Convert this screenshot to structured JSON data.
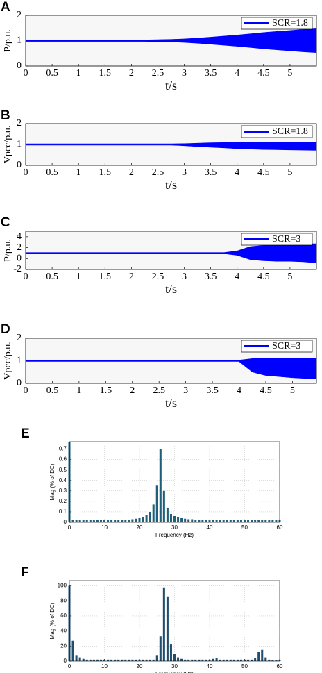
{
  "chart_data": [
    {
      "type": "area",
      "panel": "A",
      "ylabel": "P/p.u.",
      "xlabel": "t/s",
      "legend": "upper right",
      "x": [
        0,
        0.25,
        0.5,
        0.75,
        1,
        1.25,
        1.5,
        1.75,
        2,
        2.25,
        2.5,
        2.75,
        3,
        3.25,
        3.5,
        3.75,
        4,
        4.25,
        4.5,
        4.75,
        5,
        5.25,
        5.5
      ],
      "series": [
        {
          "name": "SCR=1.8",
          "color": "#0000ff",
          "values": [
            1.03,
            1.03,
            1.03,
            1.03,
            1.03,
            1.03,
            1.03,
            1.03,
            1.03,
            1.03,
            1.04,
            1.05,
            1.07,
            1.1,
            1.14,
            1.18,
            1.22,
            1.27,
            1.32,
            1.36,
            1.4,
            1.44,
            1.47
          ],
          "lower": [
            0.97,
            0.97,
            0.97,
            0.97,
            0.97,
            0.97,
            0.97,
            0.97,
            0.97,
            0.97,
            0.96,
            0.95,
            0.93,
            0.9,
            0.86,
            0.82,
            0.78,
            0.73,
            0.68,
            0.64,
            0.6,
            0.56,
            0.53
          ]
        }
      ],
      "xlim": [
        0,
        5.5
      ],
      "ylim": [
        0,
        2
      ],
      "xticks": [
        0,
        0.5,
        1,
        1.5,
        2,
        2.5,
        3,
        3.5,
        4,
        4.5,
        5
      ],
      "yticks": [
        0,
        1,
        2
      ],
      "grid": false
    },
    {
      "type": "area",
      "panel": "B",
      "ylabel": "Vpcc/p.u.",
      "xlabel": "t/s",
      "legend": "upper right",
      "x": [
        0,
        0.25,
        0.5,
        0.75,
        1,
        1.25,
        1.5,
        1.75,
        2,
        2.25,
        2.5,
        2.75,
        3,
        3.25,
        3.5,
        3.75,
        4,
        4.25,
        4.5,
        4.75,
        5,
        5.25,
        5.5
      ],
      "series": [
        {
          "name": "SCR=1.8",
          "color": "#0000ff",
          "values": [
            1.03,
            1.03,
            1.03,
            1.03,
            1.03,
            1.03,
            1.03,
            1.03,
            1.03,
            1.03,
            1.03,
            1.03,
            1.04,
            1.06,
            1.08,
            1.09,
            1.1,
            1.11,
            1.11,
            1.12,
            1.12,
            1.12,
            1.12
          ],
          "lower": [
            0.97,
            0.97,
            0.97,
            0.97,
            0.97,
            0.97,
            0.97,
            0.97,
            0.97,
            0.97,
            0.97,
            0.97,
            0.94,
            0.9,
            0.87,
            0.84,
            0.8,
            0.78,
            0.76,
            0.75,
            0.74,
            0.73,
            0.72
          ]
        }
      ],
      "xlim": [
        0,
        5.5
      ],
      "ylim": [
        0,
        2
      ],
      "xticks": [
        0,
        0.5,
        1,
        1.5,
        2,
        2.5,
        3,
        3.5,
        4,
        4.5,
        5
      ],
      "yticks": [
        0,
        1,
        2
      ],
      "grid": false
    },
    {
      "type": "area",
      "panel": "C",
      "ylabel": "P/p.u.",
      "xlabel": "t/s",
      "legend": "upper right",
      "x": [
        0,
        0.25,
        0.5,
        0.75,
        1,
        1.25,
        1.5,
        1.75,
        2,
        2.25,
        2.5,
        2.75,
        3,
        3.25,
        3.5,
        3.75,
        4,
        4.25,
        4.5,
        4.75,
        5,
        5.25,
        5.5
      ],
      "series": [
        {
          "name": "SCR=3",
          "color": "#0000ff",
          "values": [
            1.1,
            1.1,
            1.1,
            1.1,
            1.1,
            1.1,
            1.1,
            1.1,
            1.1,
            1.1,
            1.1,
            1.1,
            1.1,
            1.1,
            1.1,
            1.1,
            1.4,
            2.2,
            2.4,
            2.5,
            2.6,
            2.7,
            2.7
          ],
          "lower": [
            0.9,
            0.9,
            0.9,
            0.9,
            0.9,
            0.9,
            0.9,
            0.9,
            0.9,
            0.9,
            0.9,
            0.9,
            0.9,
            0.9,
            0.9,
            0.9,
            0.6,
            -0.2,
            -0.4,
            -0.5,
            -0.5,
            -0.6,
            -0.8
          ]
        }
      ],
      "xlim": [
        0,
        5.5
      ],
      "ylim": [
        -2,
        5
      ],
      "xticks": [
        0,
        0.5,
        1,
        1.5,
        2,
        2.5,
        3,
        3.5,
        4,
        4.5,
        5
      ],
      "yticks": [
        -2,
        0,
        2,
        4
      ],
      "grid": false
    },
    {
      "type": "area",
      "panel": "D",
      "ylabel": "Vpcc/p.u.",
      "xlabel": "t/s",
      "legend": "upper right",
      "x": [
        0,
        0.25,
        0.5,
        0.75,
        1,
        1.25,
        1.5,
        1.75,
        2,
        2.25,
        2.5,
        2.75,
        3,
        3.25,
        3.5,
        3.75,
        4,
        4.25,
        4.5,
        4.75,
        5,
        5.25,
        5.45
      ],
      "series": [
        {
          "name": "SCR=3",
          "color": "#0000ff",
          "values": [
            1.03,
            1.03,
            1.03,
            1.03,
            1.03,
            1.03,
            1.03,
            1.03,
            1.03,
            1.03,
            1.03,
            1.03,
            1.03,
            1.03,
            1.03,
            1.03,
            1.03,
            1.1,
            1.1,
            1.1,
            1.1,
            1.1,
            1.1
          ],
          "lower": [
            0.97,
            0.97,
            0.97,
            0.97,
            0.97,
            0.97,
            0.97,
            0.97,
            0.97,
            0.97,
            0.97,
            0.97,
            0.97,
            0.97,
            0.97,
            0.97,
            0.97,
            0.5,
            0.35,
            0.3,
            0.25,
            0.22,
            0.2
          ]
        }
      ],
      "xlim": [
        0,
        5.45
      ],
      "ylim": [
        0,
        2
      ],
      "xticks": [
        0,
        0.5,
        1,
        1.5,
        2,
        2.5,
        3,
        3.5,
        4,
        4.5,
        5
      ],
      "yticks": [
        0,
        1,
        2
      ],
      "grid": false
    },
    {
      "type": "bar",
      "panel": "E",
      "ylabel": "Mag (% of DC)",
      "xlabel": "Frequency (Hz)",
      "color": "#1f5f7a",
      "x": [
        0,
        1,
        2,
        3,
        4,
        5,
        6,
        7,
        8,
        9,
        10,
        11,
        12,
        13,
        14,
        15,
        16,
        17,
        18,
        19,
        20,
        21,
        22,
        23,
        24,
        25,
        26,
        27,
        28,
        29,
        30,
        31,
        32,
        33,
        34,
        35,
        36,
        37,
        38,
        39,
        40,
        41,
        42,
        43,
        44,
        45,
        46,
        47,
        48,
        49,
        50,
        51,
        52,
        53,
        54,
        55,
        56,
        57,
        58,
        59,
        60
      ],
      "values": [
        0.77,
        0.02,
        0.02,
        0.02,
        0.02,
        0.02,
        0.02,
        0.02,
        0.02,
        0.02,
        0.02,
        0.025,
        0.025,
        0.025,
        0.025,
        0.025,
        0.025,
        0.025,
        0.03,
        0.035,
        0.04,
        0.05,
        0.07,
        0.1,
        0.17,
        0.35,
        0.7,
        0.3,
        0.14,
        0.08,
        0.06,
        0.05,
        0.04,
        0.035,
        0.03,
        0.03,
        0.025,
        0.025,
        0.025,
        0.025,
        0.025,
        0.025,
        0.025,
        0.025,
        0.025,
        0.025,
        0.02,
        0.02,
        0.02,
        0.02,
        0.02,
        0.02,
        0.02,
        0.02,
        0.02,
        0.02,
        0.02,
        0.02,
        0.02,
        0.02,
        0.02
      ],
      "xlim": [
        0,
        60
      ],
      "ylim": [
        0,
        0.77
      ],
      "xticks": [
        0,
        10,
        20,
        30,
        40,
        50,
        60
      ],
      "yticks": [
        0,
        0.1,
        0.2,
        0.3,
        0.4,
        0.5,
        0.6,
        0.7
      ],
      "grid": true
    },
    {
      "type": "bar",
      "panel": "F",
      "ylabel": "Mag (% of DC)",
      "xlabel": "Frequency (Hz)",
      "color": "#1f4e6e",
      "x": [
        0,
        1,
        2,
        3,
        4,
        5,
        6,
        7,
        8,
        9,
        10,
        11,
        12,
        13,
        14,
        15,
        16,
        17,
        18,
        19,
        20,
        21,
        22,
        23,
        24,
        25,
        26,
        27,
        28,
        29,
        30,
        31,
        32,
        33,
        34,
        35,
        36,
        37,
        38,
        39,
        40,
        41,
        42,
        43,
        44,
        45,
        46,
        47,
        48,
        49,
        50,
        51,
        52,
        53,
        54,
        55,
        56,
        57,
        58,
        59,
        60
      ],
      "values": [
        100,
        27,
        8,
        5,
        3,
        2,
        2,
        2,
        2,
        2,
        2,
        2,
        2,
        2,
        2,
        2,
        2,
        2,
        2,
        2,
        2,
        2,
        2,
        2,
        2,
        8,
        33,
        98,
        86,
        23,
        10,
        5,
        3,
        2,
        2,
        2,
        2,
        2,
        2,
        2,
        2,
        3,
        4,
        2,
        2,
        2,
        2,
        2,
        2,
        2,
        2,
        2,
        2,
        4,
        12,
        15,
        5,
        2,
        1,
        1,
        1
      ],
      "xlim": [
        0,
        60
      ],
      "ylim": [
        0,
        107
      ],
      "xticks": [
        0,
        10,
        20,
        30,
        40,
        50,
        60
      ],
      "yticks": [
        0,
        20,
        40,
        60,
        80,
        100
      ],
      "grid": true
    }
  ]
}
